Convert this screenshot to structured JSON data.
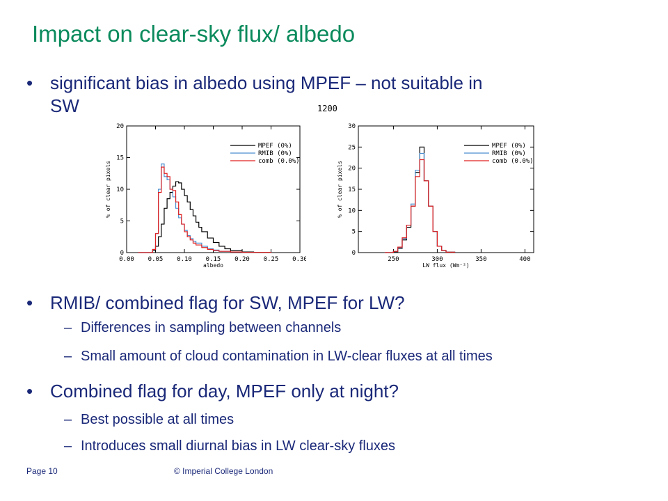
{
  "slide": {
    "title": "Impact on clear-sky flux/ albedo",
    "bullet1_line1": "significant bias in albedo using MPEF – not suitable in",
    "bullet1_line2": "SW",
    "bullet2": "RMIB/ combined flag for SW, MPEF for LW?",
    "bullet2_sub1": "Differences in sampling between channels",
    "bullet2_sub2": "Small amount of cloud contamination in LW-clear fluxes at all times",
    "bullet3": "Combined flag for day, MPEF only at night?",
    "bullet3_sub1": "Best possible at all times",
    "bullet3_sub2": "Introduces small diurnal bias in LW clear-sky fluxes",
    "bullet_symbol": "•",
    "dash_symbol": "–",
    "stray_label": "1200",
    "footer_page": "Page 10",
    "footer_copyright": "© Imperial College London",
    "colors": {
      "title": "#0a8a5c",
      "text": "#1a2878",
      "mpef": "#000000",
      "rmib": "#4a8fd0",
      "comb": "#e02020"
    }
  },
  "chart_data": [
    {
      "type": "line",
      "xlabel": "albedo",
      "ylabel": "% of clear pixels",
      "xlim": [
        0.0,
        0.3
      ],
      "ylim": [
        0,
        20
      ],
      "xticks": [
        "0.00",
        "0.05",
        "0.10",
        "0.15",
        "0.20",
        "0.25",
        "0.30"
      ],
      "yticks": [
        "0",
        "5",
        "10",
        "15",
        "20"
      ],
      "legend_position": "top-right",
      "series": [
        {
          "name": "MPEF (0%)",
          "color": "#000000",
          "x": [
            0.02,
            0.04,
            0.045,
            0.05,
            0.055,
            0.06,
            0.065,
            0.07,
            0.075,
            0.08,
            0.085,
            0.09,
            0.095,
            0.1,
            0.105,
            0.11,
            0.115,
            0.12,
            0.125,
            0.13,
            0.14,
            0.15,
            0.16,
            0.17,
            0.18,
            0.2,
            0.22,
            0.25
          ],
          "y": [
            0,
            0,
            0.3,
            1,
            2.5,
            4.5,
            7,
            8.5,
            9.5,
            10.5,
            11.2,
            11,
            10,
            9,
            8,
            6.8,
            5.8,
            4.8,
            4,
            3.3,
            2.3,
            1.6,
            1,
            0.6,
            0.3,
            0.1,
            0.05,
            0
          ]
        },
        {
          "name": "RMIB (0%)",
          "color": "#4a8fd0",
          "x": [
            0.02,
            0.04,
            0.045,
            0.05,
            0.055,
            0.06,
            0.065,
            0.07,
            0.075,
            0.08,
            0.085,
            0.09,
            0.095,
            0.1,
            0.105,
            0.11,
            0.115,
            0.12,
            0.13,
            0.14,
            0.15,
            0.16,
            0.18,
            0.2,
            0.25
          ],
          "y": [
            0,
            0,
            0.5,
            3,
            10,
            14,
            12,
            11.5,
            10,
            8.8,
            7,
            5.5,
            4.5,
            3.5,
            2.7,
            2.2,
            1.8,
            1.5,
            1,
            0.6,
            0.4,
            0.2,
            0.1,
            0.05,
            0
          ]
        },
        {
          "name": "comb (0.0%)",
          "color": "#e02020",
          "x": [
            0.02,
            0.04,
            0.045,
            0.05,
            0.055,
            0.06,
            0.065,
            0.07,
            0.075,
            0.08,
            0.085,
            0.09,
            0.095,
            0.1,
            0.105,
            0.11,
            0.115,
            0.12,
            0.13,
            0.14,
            0.15,
            0.16,
            0.18,
            0.2,
            0.25
          ],
          "y": [
            0,
            0,
            0.5,
            3,
            9.5,
            13.5,
            12.5,
            12,
            10,
            9.8,
            8,
            6,
            4.5,
            3.3,
            2.5,
            2,
            1.5,
            1.2,
            0.8,
            0.5,
            0.3,
            0.2,
            0.1,
            0.05,
            0
          ]
        }
      ]
    },
    {
      "type": "line",
      "xlabel": "LW flux (Wm⁻²)",
      "ylabel": "% of clear pixels",
      "xlim": [
        210,
        410
      ],
      "ylim": [
        0,
        30
      ],
      "xticks": [
        "250",
        "300",
        "350",
        "400"
      ],
      "yticks": [
        "0",
        "5",
        "10",
        "15",
        "20",
        "25",
        "30"
      ],
      "legend_position": "top-right",
      "series": [
        {
          "name": "MPEF (0%)",
          "color": "#000000",
          "x": [
            240,
            250,
            255,
            260,
            265,
            270,
            275,
            280,
            285,
            290,
            295,
            300,
            305,
            310,
            320
          ],
          "y": [
            0,
            0.2,
            1,
            3,
            6,
            11,
            19,
            25,
            17,
            11,
            5,
            1.5,
            0.5,
            0.1,
            0
          ]
        },
        {
          "name": "RMIB (0%)",
          "color": "#4a8fd0",
          "x": [
            240,
            250,
            255,
            260,
            265,
            270,
            275,
            280,
            285,
            290,
            295,
            300,
            305,
            310,
            320
          ],
          "y": [
            0,
            0.3,
            1.2,
            3.3,
            6.5,
            11.5,
            19.5,
            23.5,
            17,
            11,
            5,
            1.5,
            0.5,
            0.1,
            0
          ]
        },
        {
          "name": "comb (0.0%)",
          "color": "#e02020",
          "x": [
            240,
            250,
            255,
            260,
            265,
            270,
            275,
            280,
            285,
            290,
            295,
            300,
            305,
            310,
            320
          ],
          "y": [
            0,
            0.3,
            1.3,
            3.5,
            6.5,
            11,
            18,
            22,
            17,
            11,
            5,
            1.5,
            0.5,
            0.1,
            0
          ]
        }
      ]
    }
  ]
}
